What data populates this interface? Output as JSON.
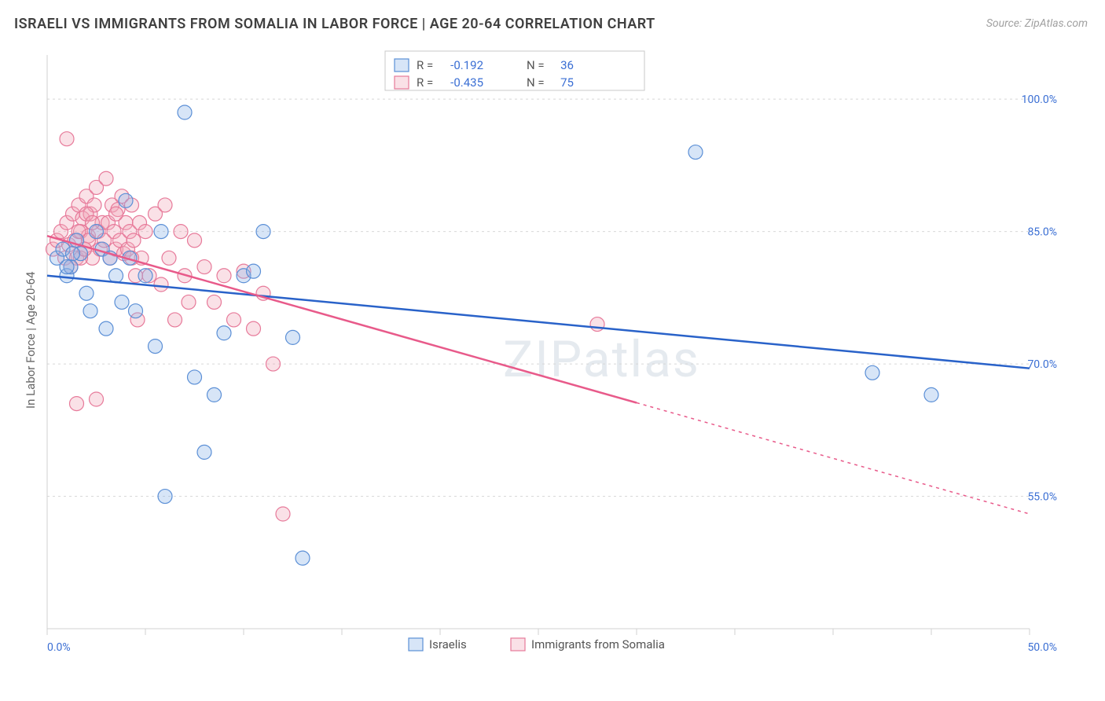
{
  "title": "ISRAELI VS IMMIGRANTS FROM SOMALIA IN LABOR FORCE | AGE 20-64 CORRELATION CHART",
  "source": "Source: ZipAtlas.com",
  "watermark": "ZIPatlas",
  "ylabel": "In Labor Force | Age 20-64",
  "chart": {
    "type": "scatter",
    "background_color": "#ffffff",
    "grid_color": "#d8d8d8",
    "axis_color": "#d0d0d0",
    "label_color": "#3b6fd4",
    "axis_label_fontsize": 14,
    "xlim": [
      0,
      50
    ],
    "ylim": [
      40,
      105
    ],
    "xtick_positions": [
      0,
      5,
      10,
      15,
      20,
      25,
      30,
      35,
      40,
      45,
      50
    ],
    "xtick_labels": [
      "0.0%",
      "",
      "",
      "",
      "",
      "",
      "",
      "",
      "",
      "",
      "50.0%"
    ],
    "ytick_positions": [
      55,
      70,
      85,
      100
    ],
    "ytick_labels": [
      "55.0%",
      "70.0%",
      "85.0%",
      "100.0%"
    ],
    "marker_radius": 9,
    "marker_stroke_width": 1.2,
    "line_width": 2.5,
    "series": [
      {
        "name": "Israelis",
        "color": "#8cb4e8",
        "fill": "rgba(140,180,232,0.35)",
        "stroke": "#5b8fd6",
        "line_color": "#2962c9",
        "r_value": "-0.192",
        "n_value": "36",
        "trend": {
          "x1": 0,
          "y1": 80,
          "x2": 50,
          "y2": 69.5,
          "solid_to_x": 50
        },
        "points": [
          [
            0.5,
            82
          ],
          [
            0.8,
            83
          ],
          [
            1.0,
            80
          ],
          [
            1.2,
            81
          ],
          [
            1.5,
            84
          ],
          [
            1.7,
            82.5
          ],
          [
            2.0,
            78
          ],
          [
            2.2,
            76
          ],
          [
            2.5,
            85
          ],
          [
            2.8,
            83
          ],
          [
            3.0,
            74
          ],
          [
            3.2,
            82
          ],
          [
            3.5,
            80
          ],
          [
            3.8,
            77
          ],
          [
            4.0,
            88.5
          ],
          [
            4.2,
            82
          ],
          [
            4.5,
            76
          ],
          [
            5.0,
            80
          ],
          [
            5.5,
            72
          ],
          [
            5.8,
            85
          ],
          [
            6.0,
            55
          ],
          [
            7.0,
            98.5
          ],
          [
            7.5,
            68.5
          ],
          [
            8.0,
            60
          ],
          [
            8.5,
            66.5
          ],
          [
            9.0,
            73.5
          ],
          [
            10.0,
            80
          ],
          [
            10.5,
            80.5
          ],
          [
            11.0,
            85
          ],
          [
            12.5,
            73
          ],
          [
            13.0,
            48
          ],
          [
            33.0,
            94
          ],
          [
            42.0,
            69
          ],
          [
            45.0,
            66.5
          ],
          [
            1.0,
            81
          ],
          [
            1.3,
            82.5
          ]
        ]
      },
      {
        "name": "Immigrants from Somalia",
        "color": "#f2a8bb",
        "fill": "rgba(242,168,187,0.35)",
        "stroke": "#e77a9a",
        "line_color": "#e85a8a",
        "r_value": "-0.435",
        "n_value": "75",
        "trend": {
          "x1": 0,
          "y1": 84.5,
          "x2": 50,
          "y2": 53,
          "solid_to_x": 30
        },
        "points": [
          [
            0.3,
            83
          ],
          [
            0.5,
            84
          ],
          [
            0.7,
            85
          ],
          [
            0.9,
            82
          ],
          [
            1.0,
            86
          ],
          [
            1.1,
            83.5
          ],
          [
            1.3,
            87
          ],
          [
            1.4,
            84
          ],
          [
            1.5,
            82
          ],
          [
            1.6,
            88
          ],
          [
            1.7,
            85
          ],
          [
            1.8,
            86.5
          ],
          [
            1.9,
            83
          ],
          [
            2.0,
            89
          ],
          [
            2.1,
            84.5
          ],
          [
            2.2,
            87
          ],
          [
            2.3,
            82
          ],
          [
            2.4,
            88
          ],
          [
            2.5,
            90
          ],
          [
            2.6,
            85
          ],
          [
            2.7,
            83
          ],
          [
            2.8,
            86
          ],
          [
            2.9,
            84
          ],
          [
            3.0,
            91
          ],
          [
            3.1,
            86
          ],
          [
            3.2,
            82
          ],
          [
            3.3,
            88
          ],
          [
            3.4,
            85
          ],
          [
            3.5,
            83
          ],
          [
            3.6,
            87.5
          ],
          [
            3.7,
            84
          ],
          [
            3.8,
            89
          ],
          [
            3.9,
            82.5
          ],
          [
            4.0,
            86
          ],
          [
            4.1,
            83
          ],
          [
            4.2,
            85
          ],
          [
            4.3,
            88
          ],
          [
            4.4,
            84
          ],
          [
            4.5,
            80
          ],
          [
            4.6,
            75
          ],
          [
            4.7,
            86
          ],
          [
            4.8,
            82
          ],
          [
            5.0,
            85
          ],
          [
            5.2,
            80
          ],
          [
            5.5,
            87
          ],
          [
            5.8,
            79
          ],
          [
            6.0,
            88
          ],
          [
            6.2,
            82
          ],
          [
            6.5,
            75
          ],
          [
            6.8,
            85
          ],
          [
            7.0,
            80
          ],
          [
            7.2,
            77
          ],
          [
            7.5,
            84
          ],
          [
            8.0,
            81
          ],
          [
            8.5,
            77
          ],
          [
            9.0,
            80
          ],
          [
            9.5,
            75
          ],
          [
            10.0,
            80.5
          ],
          [
            10.5,
            74
          ],
          [
            11.0,
            78
          ],
          [
            11.5,
            70
          ],
          [
            12.0,
            53
          ],
          [
            1.0,
            95.5
          ],
          [
            2.5,
            66
          ],
          [
            1.5,
            65.5
          ],
          [
            2.0,
            87
          ],
          [
            2.3,
            86
          ],
          [
            1.7,
            82
          ],
          [
            1.2,
            81
          ],
          [
            28.0,
            74.5
          ],
          [
            4.3,
            82
          ],
          [
            3.5,
            87
          ],
          [
            2.1,
            84
          ],
          [
            1.9,
            83
          ],
          [
            1.6,
            85
          ]
        ]
      }
    ],
    "legend_top": {
      "label_r": "R =",
      "label_n": "N ="
    },
    "legend_bottom": {
      "items": [
        "Israelis",
        "Immigrants from Somalia"
      ]
    }
  }
}
